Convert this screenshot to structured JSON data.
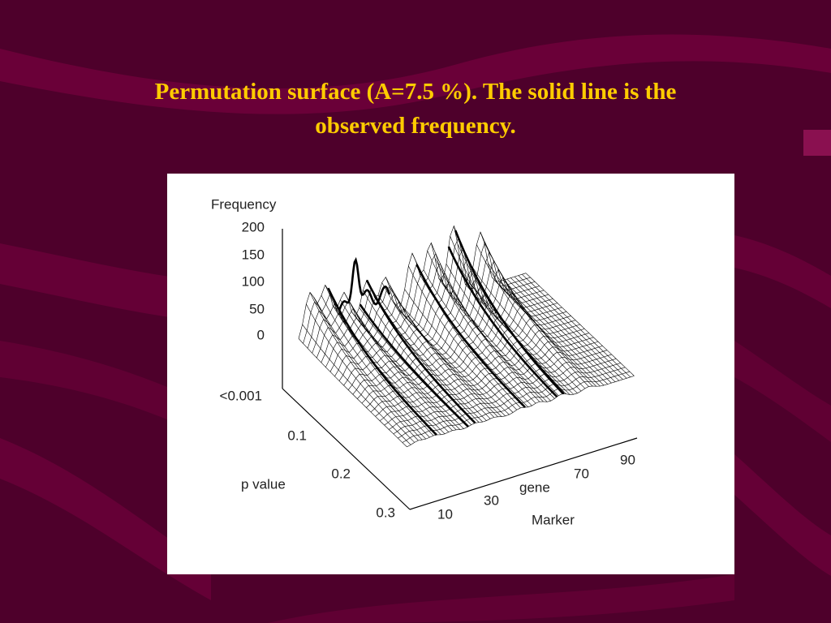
{
  "slide": {
    "title": "Permutation surface (A=7.5 %). The solid line is the observed frequency."
  },
  "figure": {
    "z_axis_label": "Frequency",
    "z_ticks": [
      "200",
      "150",
      "100",
      "50",
      "0"
    ],
    "p_axis_label": "p value",
    "p_ticks": [
      "<0.001",
      "0.1",
      "0.2",
      "0.3"
    ],
    "x_axis_label_upper": "gene",
    "x_axis_label_lower": "Marker",
    "x_ticks": [
      "10",
      "30",
      "70",
      "90"
    ]
  }
}
